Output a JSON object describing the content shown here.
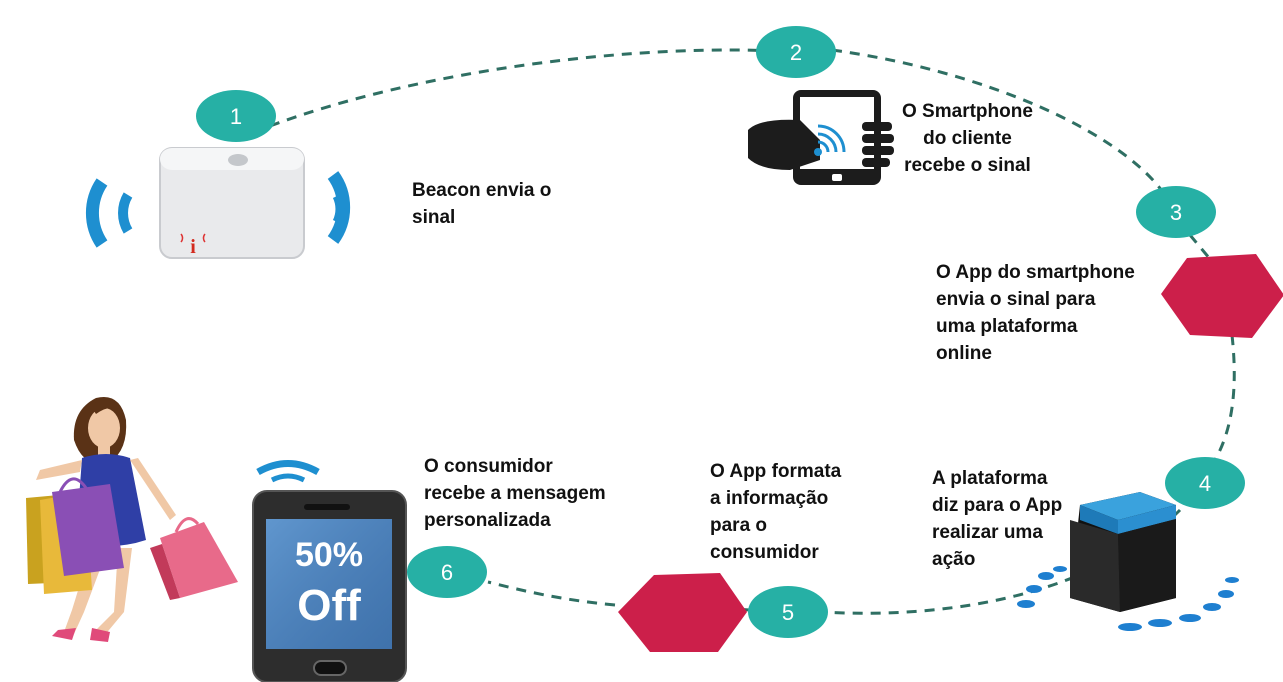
{
  "colors": {
    "teal": "#26b0a5",
    "dash": "#2f6f63",
    "crimson": "#cc1f4a",
    "signal_blue": "#1e8fd0",
    "background": "#ffffff"
  },
  "steps": [
    {
      "number": "1",
      "lines": [
        "Beacon envia o",
        "sinal"
      ],
      "icon": "beacon-icon"
    },
    {
      "number": "2",
      "lines": [
        "O Smartphone",
        "do cliente",
        "recebe o sinal"
      ],
      "icon": "hand-smartphone-icon"
    },
    {
      "number": "3",
      "lines": [
        "O App do smartphone",
        "envia o sinal para",
        "uma plataforma",
        "online"
      ],
      "icon": "hexagon-icon"
    },
    {
      "number": "4",
      "lines": [
        "A plataforma",
        "diz para o App",
        "realizar uma",
        "ação"
      ],
      "icon": "server-icon"
    },
    {
      "number": "5",
      "lines": [
        "O App formata",
        "a informação",
        "para o",
        "consumidor"
      ],
      "icon": "hexagon-icon"
    },
    {
      "number": "6",
      "lines": [
        "O consumidor",
        "recebe a mensagem",
        "personalizada"
      ],
      "icon": "phone-offer-icon"
    }
  ],
  "offer": {
    "percent": "50%",
    "word": "Off"
  },
  "beacon_mark": "i"
}
